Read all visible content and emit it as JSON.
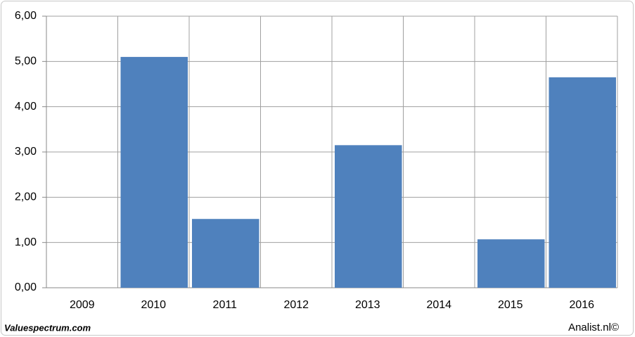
{
  "chart_data": {
    "type": "bar",
    "categories": [
      "2009",
      "2010",
      "2011",
      "2012",
      "2013",
      "2014",
      "2015",
      "2016"
    ],
    "values": [
      null,
      5.1,
      1.52,
      null,
      3.15,
      null,
      1.07,
      4.65
    ],
    "color": "#4f81bd",
    "ylim": [
      0,
      6
    ],
    "yticks": [
      {
        "value": 0,
        "label": "0,00"
      },
      {
        "value": 1,
        "label": "1,00"
      },
      {
        "value": 2,
        "label": "2,00"
      },
      {
        "value": 3,
        "label": "3,00"
      },
      {
        "value": 4,
        "label": "4,00"
      },
      {
        "value": 5,
        "label": "5,00"
      },
      {
        "value": 6,
        "label": "6,00"
      }
    ],
    "grid": true,
    "source_left": "Valuespectrum.com",
    "source_right": "Analist.nl©"
  }
}
